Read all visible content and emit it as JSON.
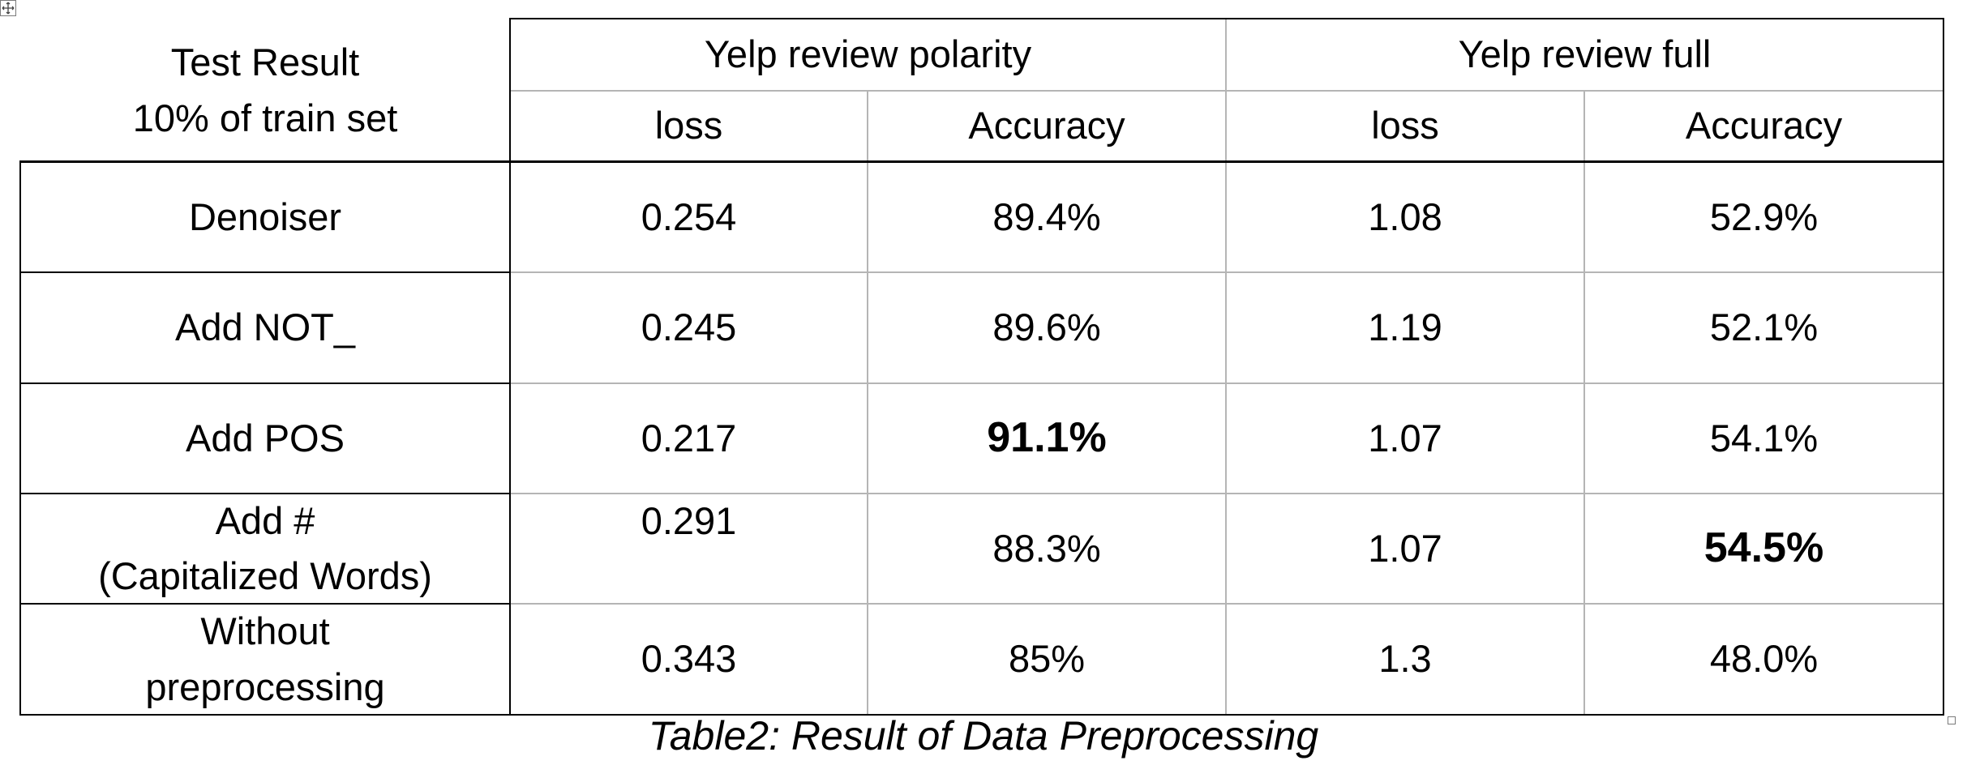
{
  "table": {
    "corner_header": [
      "Test Result",
      "10% of train set"
    ],
    "groups": [
      "Yelp review polarity",
      "Yelp review full"
    ],
    "columns": [
      "loss",
      "Accuracy",
      "loss",
      "Accuracy"
    ],
    "rows": [
      {
        "label": [
          "Denoiser"
        ],
        "values": [
          "0.254",
          "89.4%",
          "1.08",
          "52.9%"
        ]
      },
      {
        "label": [
          "Add NOT_"
        ],
        "values": [
          "0.245",
          "89.6%",
          "1.19",
          "52.1%"
        ]
      },
      {
        "label": [
          "Add POS"
        ],
        "values": [
          "0.217",
          "91.1%",
          "1.07",
          "54.1%"
        ]
      },
      {
        "label": [
          "Add #",
          "(Capitalized Words)"
        ],
        "values": [
          "0.291",
          "88.3%",
          "1.07",
          "54.5%"
        ]
      },
      {
        "label": [
          "Without",
          "preprocessing"
        ],
        "values": [
          "0.343",
          "85%",
          "1.3",
          "48.0%"
        ]
      }
    ],
    "bold_cells": [
      "91.1%",
      "54.5%"
    ]
  },
  "caption": "Table2: Result of Data Preprocessing"
}
